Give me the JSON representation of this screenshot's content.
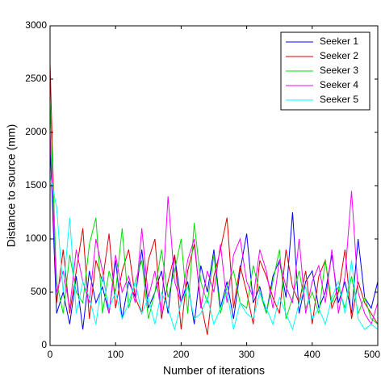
{
  "chart_data": {
    "type": "line",
    "xlabel": "Number of iterations",
    "ylabel": "Distance to source (mm)",
    "x": [
      0,
      10,
      20,
      30,
      40,
      50,
      60,
      70,
      80,
      90,
      100,
      110,
      120,
      130,
      140,
      150,
      160,
      170,
      180,
      190,
      200,
      210,
      220,
      230,
      240,
      250,
      260,
      270,
      280,
      290,
      300,
      310,
      320,
      330,
      340,
      350,
      360,
      370,
      380,
      390,
      400,
      410,
      420,
      430,
      440,
      450,
      460,
      470,
      480,
      490,
      500
    ],
    "xlim": [
      0,
      500
    ],
    "xticks": [
      0,
      100,
      200,
      300,
      400,
      500
    ],
    "ylim": [
      0,
      3000
    ],
    "yticks": [
      0,
      500,
      1000,
      1500,
      2000,
      2500,
      3000
    ],
    "legend": "upper right",
    "series": [
      {
        "name": "Seeker 1",
        "color": "#0000ff",
        "values": [
          1900,
          300,
          500,
          200,
          650,
          150,
          700,
          400,
          550,
          300,
          800,
          250,
          600,
          450,
          900,
          350,
          500,
          700,
          300,
          850,
          400,
          600,
          200,
          750,
          500,
          900,
          350,
          600,
          250,
          700,
          1050,
          400,
          550,
          300,
          650,
          800,
          450,
          1250,
          300,
          600,
          700,
          350,
          500,
          850,
          400,
          600,
          300,
          1000,
          450,
          350,
          600
        ]
      },
      {
        "name": "Seeker 2",
        "color": "#e00000",
        "values": [
          2650,
          400,
          900,
          300,
          700,
          1100,
          250,
          800,
          600,
          1050,
          350,
          700,
          900,
          450,
          300,
          800,
          1000,
          250,
          600,
          850,
          150,
          700,
          950,
          400,
          100,
          650,
          900,
          1200,
          350,
          750,
          500,
          200,
          800,
          650,
          450,
          300,
          900,
          550,
          400,
          700,
          200,
          650,
          800,
          350,
          500,
          900,
          250,
          600,
          400,
          300,
          200
        ]
      },
      {
        "name": "Seeker 3",
        "color": "#00e000",
        "values": [
          2300,
          600,
          300,
          850,
          500,
          400,
          950,
          1200,
          300,
          700,
          500,
          1100,
          350,
          600,
          800,
          250,
          500,
          900,
          450,
          700,
          1000,
          300,
          1150,
          600,
          400,
          850,
          300,
          550,
          700,
          400,
          350,
          750,
          500,
          300,
          600,
          900,
          250,
          450,
          700,
          350,
          500,
          300,
          800,
          400,
          550,
          350,
          650,
          300,
          450,
          250,
          200
        ]
      },
      {
        "name": "Seeker 4",
        "color": "#ff00ff",
        "values": [
          2000,
          500,
          700,
          350,
          900,
          600,
          400,
          1000,
          700,
          300,
          850,
          500,
          650,
          400,
          1100,
          450,
          700,
          300,
          1400,
          600,
          400,
          800,
          1000,
          350,
          700,
          500,
          950,
          400,
          850,
          1000,
          600,
          450,
          900,
          700,
          350,
          800,
          550,
          400,
          1000,
          300,
          600,
          750,
          400,
          900,
          300,
          650,
          1450,
          500,
          300,
          200,
          400
        ]
      },
      {
        "name": "Seeker 5",
        "color": "#00ffff",
        "values": [
          1600,
          1300,
          500,
          1200,
          300,
          600,
          450,
          200,
          650,
          350,
          500,
          250,
          400,
          600,
          300,
          450,
          200,
          500,
          350,
          150,
          400,
          550,
          250,
          300,
          450,
          200,
          350,
          500,
          150,
          400,
          300,
          250,
          500,
          350,
          200,
          450,
          300,
          150,
          400,
          550,
          250,
          350,
          200,
          450,
          600,
          300,
          800,
          250,
          150,
          200,
          150
        ]
      }
    ]
  }
}
